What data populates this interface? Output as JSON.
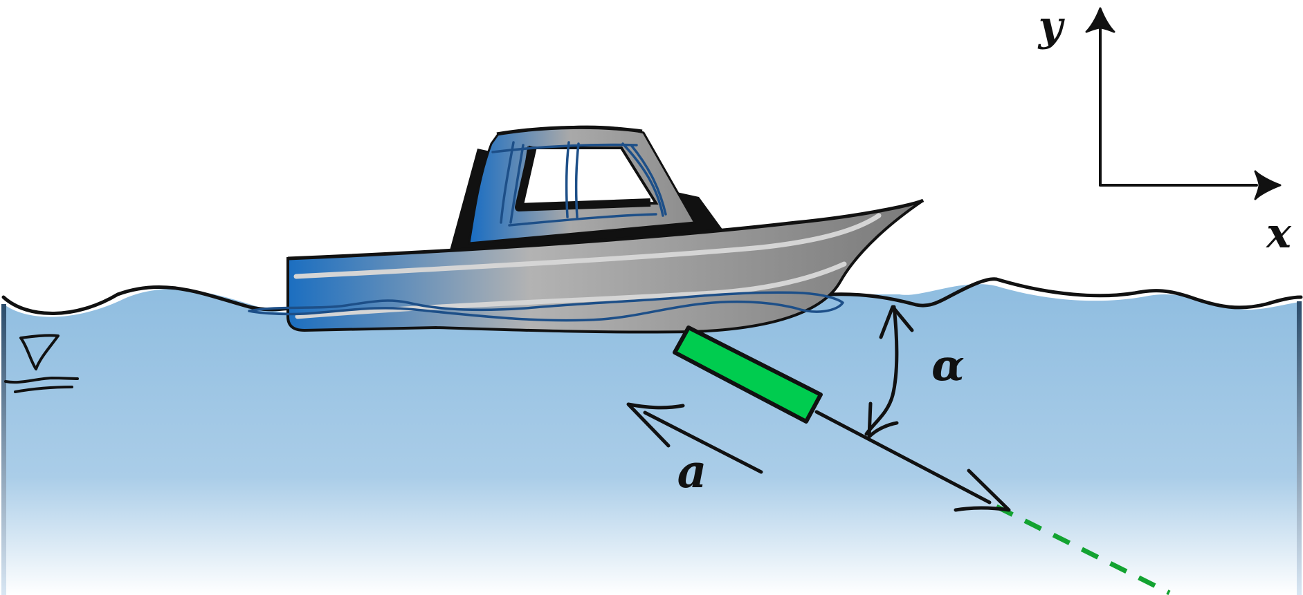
{
  "labels": {
    "y_axis": "y",
    "x_axis": "x",
    "angle": "α",
    "acceleration": "a"
  },
  "icons": {
    "free_surface": "water-surface-triangle-icon",
    "boat": "motor-boat-icon"
  },
  "colors": {
    "water_top": "#8fbde0",
    "water_bottom": "#ffffff",
    "hull_blue": "#1e72c2",
    "hull_gray": "#9a9a9a",
    "float_green": "#00cc4f",
    "trajectory_green": "#13a331",
    "outline": "#111111"
  }
}
